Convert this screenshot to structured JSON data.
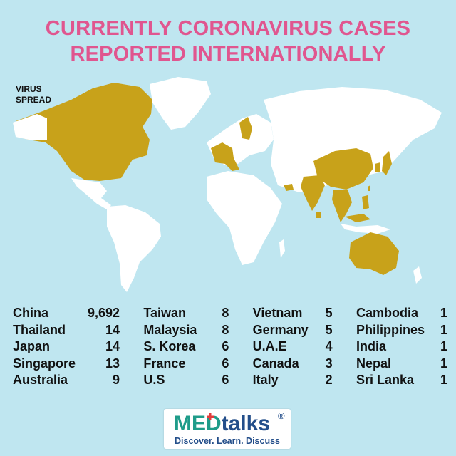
{
  "title": "CURRENTLY CORONAVIRUS CASES REPORTED INTERNATIONALLY",
  "legend": {
    "line1": "VIRUS",
    "line2": "SPREAD"
  },
  "colors": {
    "background": "#bfe6f0",
    "title": "#e0568f",
    "land": "#ffffff",
    "affected": "#c8a21a",
    "med": "#1f9c8a",
    "talks": "#234e8a",
    "cross": "#e23c3c"
  },
  "countries": [
    [
      {
        "name": "China",
        "count": "9,692"
      },
      {
        "name": "Thailand",
        "count": "14"
      },
      {
        "name": "Japan",
        "count": "14"
      },
      {
        "name": "Singapore",
        "count": "13"
      },
      {
        "name": "Australia",
        "count": "9"
      }
    ],
    [
      {
        "name": "Taiwan",
        "count": "8"
      },
      {
        "name": "Malaysia",
        "count": "8"
      },
      {
        "name": "S. Korea",
        "count": "6"
      },
      {
        "name": "France",
        "count": "6"
      },
      {
        "name": "U.S",
        "count": "6"
      }
    ],
    [
      {
        "name": "Vietnam",
        "count": "5"
      },
      {
        "name": "Germany",
        "count": "5"
      },
      {
        "name": "U.A.E",
        "count": "4"
      },
      {
        "name": "Canada",
        "count": "3"
      },
      {
        "name": "Italy",
        "count": "2"
      }
    ],
    [
      {
        "name": "Cambodia",
        "count": "1"
      },
      {
        "name": "Philippines",
        "count": "1"
      },
      {
        "name": "India",
        "count": "1"
      },
      {
        "name": "Nepal",
        "count": "1"
      },
      {
        "name": "Sri Lanka",
        "count": "1"
      }
    ]
  ],
  "logo": {
    "med": "MED",
    "talks": "talks",
    "registered": "®",
    "tagline": "Discover. Learn. Discuss"
  }
}
